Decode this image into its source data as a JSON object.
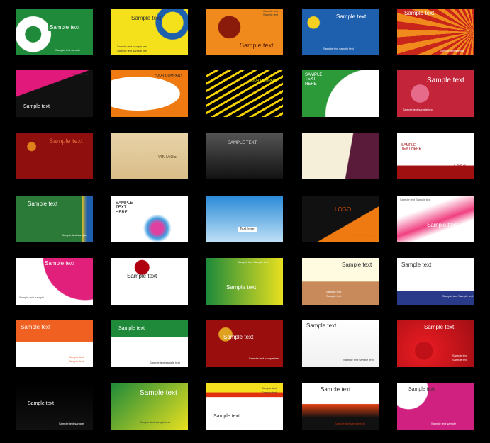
{
  "cards": [
    {
      "texts": [
        "Sample text",
        "Sample text sample"
      ]
    },
    {
      "texts": [
        "Sample text",
        "Sample text sample text",
        "Sample text sample text"
      ]
    },
    {
      "texts": [
        "Sample text",
        "Sample text",
        "Sample text"
      ]
    },
    {
      "texts": [
        "Sample text",
        "Sample text sample text"
      ]
    },
    {
      "texts": [
        "Sample text",
        "Sample text sample"
      ]
    },
    {
      "texts": [
        "Sample text",
        "Sample text"
      ]
    },
    {
      "texts": [
        "YOUR COMPANY"
      ]
    },
    {
      "texts": [
        "YOUR COMPANY"
      ]
    },
    {
      "texts": [
        "SAMPLE TEXT HERE",
        "LOGO"
      ]
    },
    {
      "texts": [
        "Sample text",
        "Sample text sample text"
      ]
    },
    {
      "texts": [
        "Sample text"
      ]
    },
    {
      "texts": [
        "VINTAGE"
      ]
    },
    {
      "texts": [
        "SAMPLE TEXT"
      ]
    },
    {
      "texts": []
    },
    {
      "texts": [
        "SAMPLE TEXT HERE",
        "LOGO"
      ]
    },
    {
      "texts": [
        "Sample text",
        "Sample text sample"
      ]
    },
    {
      "texts": [
        "SAMPLE TEXT HERE"
      ]
    },
    {
      "texts": [
        "Text here"
      ]
    },
    {
      "texts": [
        "LOGO",
        "Sample text sample"
      ]
    },
    {
      "texts": [
        "Sample text",
        "Sample text Sample text"
      ]
    },
    {
      "texts": [
        "Sample text",
        "Sample text sample"
      ]
    },
    {
      "texts": [
        "Sample text"
      ]
    },
    {
      "texts": [
        "Sample text",
        "Sample text Sample text"
      ]
    },
    {
      "texts": [
        "Sample text",
        "Sample text",
        "Sample text"
      ]
    },
    {
      "texts": [
        "Sample text",
        "Sample text Sample text"
      ]
    },
    {
      "texts": [
        "Sample text",
        "Sample text",
        "Sample text"
      ]
    },
    {
      "texts": [
        "Sample text",
        "Sample text sample text"
      ]
    },
    {
      "texts": [
        "Sample text",
        "Sample text sample text"
      ]
    },
    {
      "texts": [
        "Sample text",
        "Sample text sample text"
      ]
    },
    {
      "texts": [
        "Sample text",
        "Sample text",
        "Sample text"
      ]
    },
    {
      "texts": [
        "Sample text",
        "Sample text sample"
      ]
    },
    {
      "texts": [
        "Sample text",
        "Sample text sample text"
      ]
    },
    {
      "texts": [
        "Sample text",
        "Sample text",
        "Sample text"
      ]
    },
    {
      "texts": [
        "Sample text",
        "Sample text sample text"
      ]
    },
    {
      "texts": [
        "Sample text",
        "Sample text sample"
      ]
    }
  ]
}
